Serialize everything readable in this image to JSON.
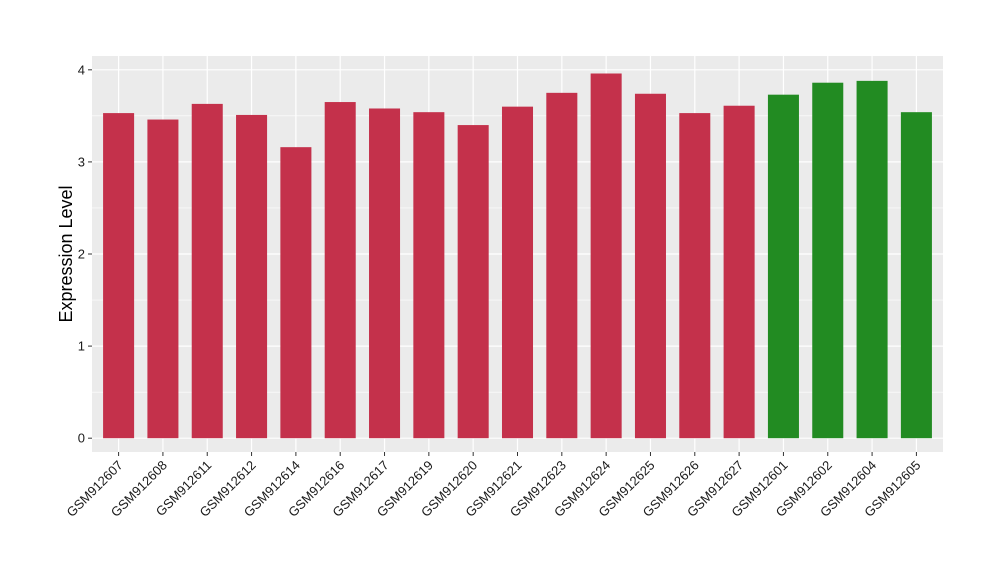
{
  "chart_data": {
    "type": "bar",
    "ylabel": "Expression Level",
    "xlabel": "",
    "ylim": [
      -0.15,
      4.15
    ],
    "yticks": [
      0,
      1,
      2,
      3,
      4
    ],
    "ytick_labels": [
      "0",
      "1",
      "2",
      "3",
      "4"
    ],
    "grid": true,
    "legend": "none",
    "categories": [
      "GSM912607",
      "GSM912608",
      "GSM912611",
      "GSM912612",
      "GSM912614",
      "GSM912616",
      "GSM912617",
      "GSM912619",
      "GSM912620",
      "GSM912621",
      "GSM912623",
      "GSM912624",
      "GSM912625",
      "GSM912626",
      "GSM912627",
      "GSM912601",
      "GSM912602",
      "GSM912604",
      "GSM912605"
    ],
    "values": [
      3.53,
      3.46,
      3.63,
      3.51,
      3.16,
      3.65,
      3.58,
      3.54,
      3.4,
      3.6,
      3.75,
      3.96,
      3.74,
      3.53,
      3.61,
      3.73,
      3.86,
      3.88,
      3.54
    ],
    "bar_colors": [
      "#c4314b",
      "#c4314b",
      "#c4314b",
      "#c4314b",
      "#c4314b",
      "#c4314b",
      "#c4314b",
      "#c4314b",
      "#c4314b",
      "#c4314b",
      "#c4314b",
      "#c4314b",
      "#c4314b",
      "#c4314b",
      "#c4314b",
      "#228b22",
      "#228b22",
      "#228b22",
      "#228b22"
    ],
    "panel_color": "#ebebeb",
    "grid_color": "#ffffff"
  }
}
